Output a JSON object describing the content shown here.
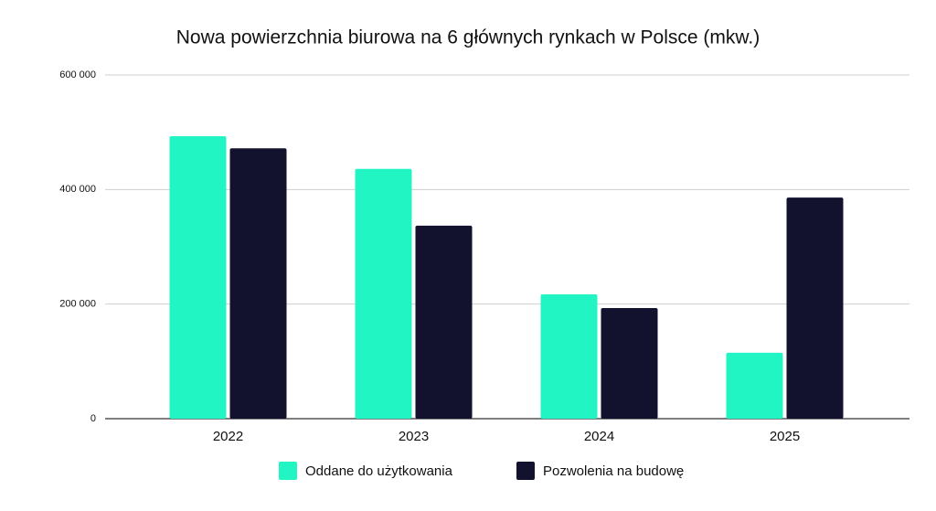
{
  "chart_data": {
    "type": "bar",
    "title": "Nowa powierzchnia biurowa na 6 głównych rynkach w Polsce (mkw.)",
    "categories": [
      "2022",
      "2023",
      "2024",
      "2025"
    ],
    "series": [
      {
        "name": "Oddane do użytkowania",
        "color": "#22f5c4",
        "values": [
          493000,
          436000,
          217000,
          115000
        ]
      },
      {
        "name": "Pozwolenia na budowę",
        "color": "#13122e",
        "values": [
          472000,
          337000,
          193000,
          386000
        ]
      }
    ],
    "ylim": [
      0,
      600000
    ],
    "yticks": [
      0,
      {
        "value": 200000,
        "label": "200 000"
      },
      {
        "value": 400000,
        "label": "400 000"
      },
      {
        "value": 600000,
        "label": "600 000"
      }
    ],
    "grid": true,
    "legend": "bottom"
  }
}
